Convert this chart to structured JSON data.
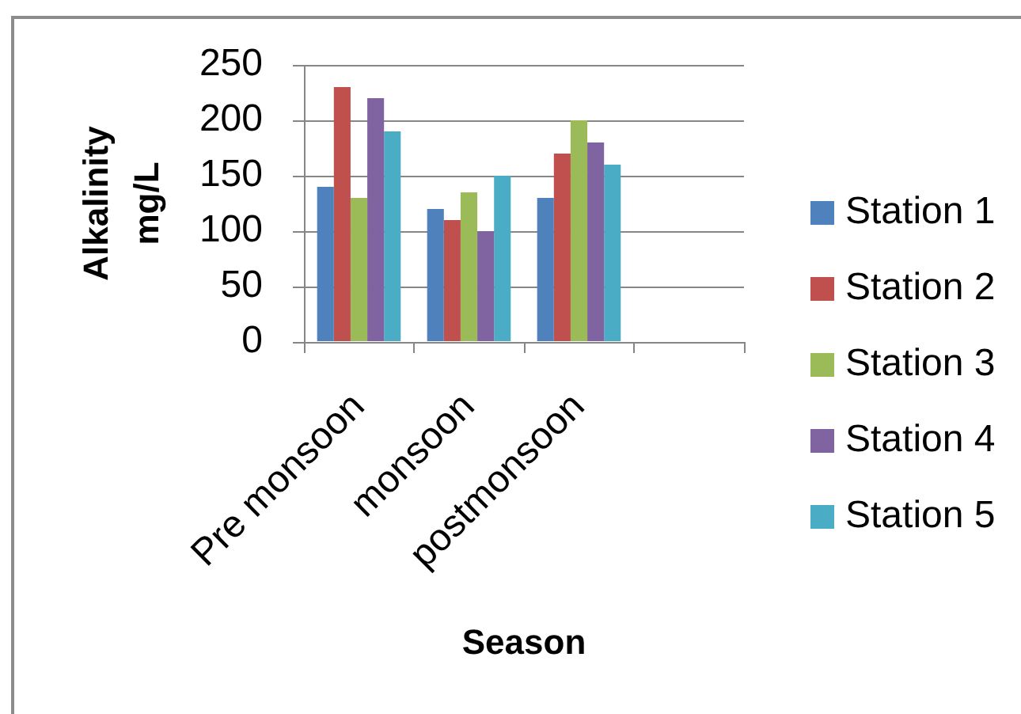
{
  "chart_data": {
    "type": "bar",
    "xlabel": "Season",
    "ylabel": "Alkalinity mg/L",
    "categories": [
      "Pre monsoon",
      "monsoon",
      "postmonsoon",
      null
    ],
    "series": [
      {
        "name": "Station 1",
        "color": "#4f81bd",
        "values": [
          140,
          120,
          130,
          null
        ]
      },
      {
        "name": "Station 2",
        "color": "#c0504d",
        "values": [
          230,
          110,
          170,
          null
        ]
      },
      {
        "name": "Station 3",
        "color": "#9bbb59",
        "values": [
          130,
          135,
          200,
          null
        ]
      },
      {
        "name": "Station 4",
        "color": "#8064a2",
        "values": [
          220,
          100,
          180,
          null
        ]
      },
      {
        "name": "Station 5",
        "color": "#4bacc6",
        "values": [
          190,
          150,
          160,
          null
        ]
      }
    ],
    "ylim": [
      0,
      250
    ],
    "yticks": [
      0,
      50,
      100,
      150,
      200,
      250
    ],
    "grid": "y",
    "legend": "right"
  }
}
